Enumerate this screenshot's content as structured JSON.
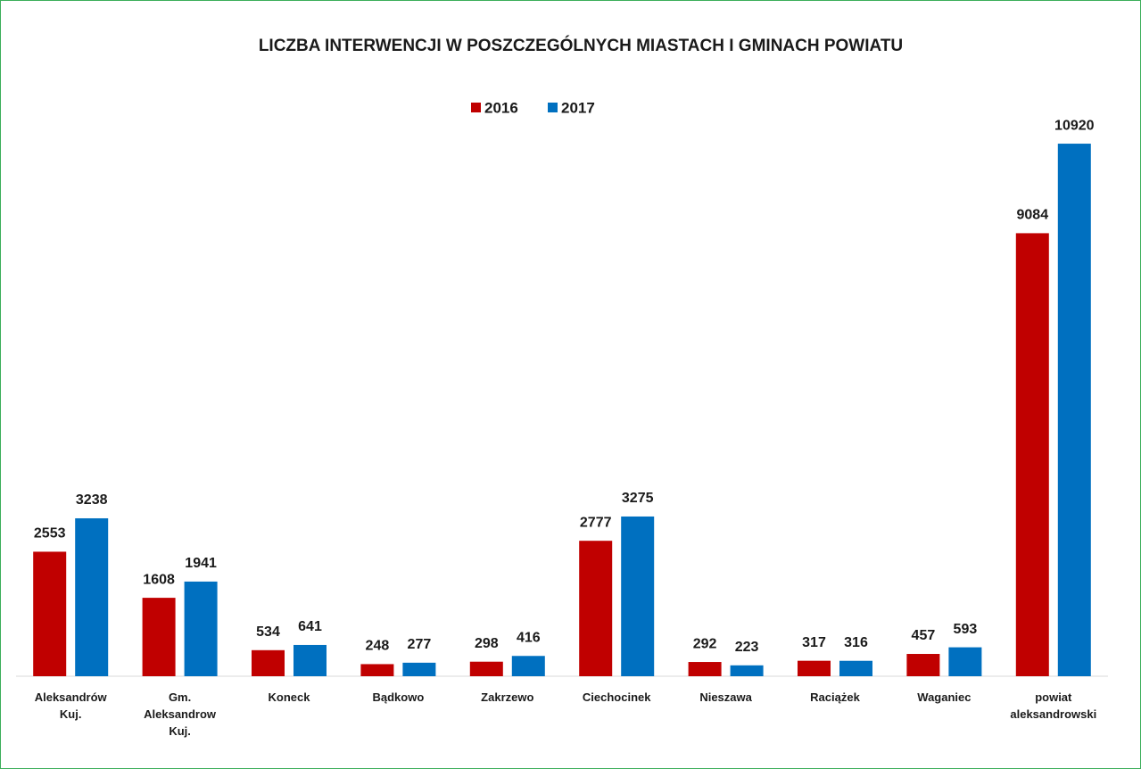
{
  "chart_data": {
    "type": "bar",
    "title": "LICZBA INTERWENCJI W POSZCZEGÓLNYCH MIASTACH I GMINACH POWIATU",
    "categories": [
      "Aleksandrów Kuj.",
      "Gm. Aleksandrow Kuj.",
      "Koneck",
      "Bądkowo",
      "Zakrzewo",
      "Ciechocinek",
      "Nieszawa",
      "Raciążek",
      "Waganiec",
      "powiat aleksandrowski"
    ],
    "series": [
      {
        "name": "2016",
        "color": "#c00000",
        "values": [
          2553,
          1608,
          534,
          248,
          298,
          2777,
          292,
          317,
          457,
          9084
        ]
      },
      {
        "name": "2017",
        "color": "#0070c0",
        "values": [
          3238,
          1941,
          641,
          277,
          416,
          3275,
          223,
          316,
          593,
          10920
        ]
      }
    ],
    "ylim": [
      0,
      12000
    ],
    "legend": "top"
  }
}
